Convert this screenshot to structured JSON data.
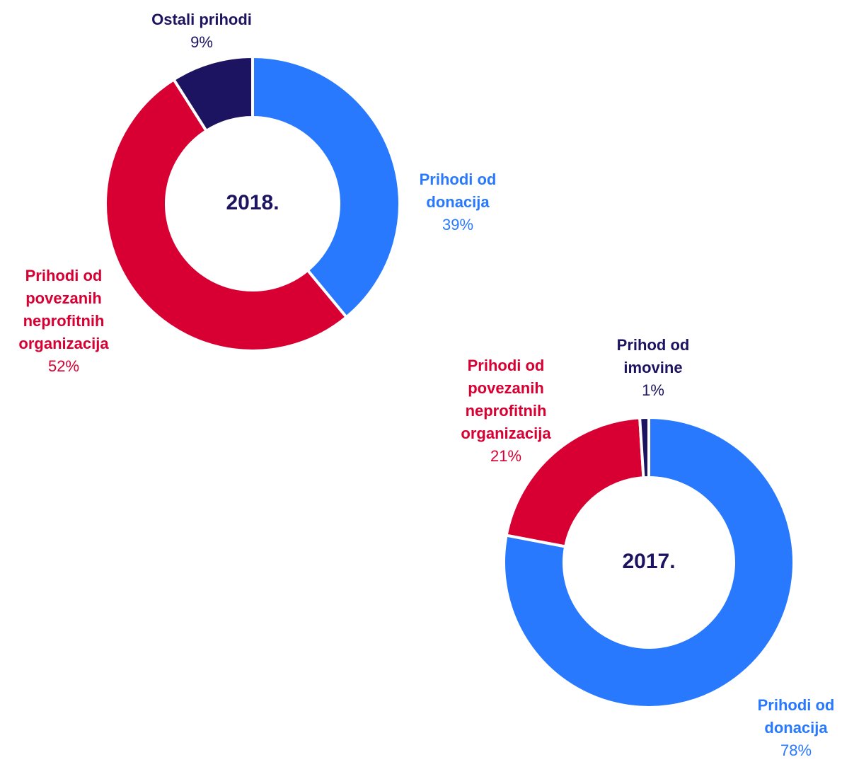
{
  "chart_data": [
    {
      "type": "pie",
      "donut": true,
      "title": "2018.",
      "categories": [
        "Prihodi od donacija",
        "Prihodi od povezanih neprofitnih organizacija",
        "Ostali prihodi"
      ],
      "values": [
        39,
        52,
        9
      ],
      "value_labels": [
        "39%",
        "52%",
        "9%"
      ],
      "colors": [
        "#2979ff",
        "#d80032",
        "#1c1461"
      ]
    },
    {
      "type": "pie",
      "donut": true,
      "title": "2017.",
      "categories": [
        "Prihodi od donacija",
        "Prihodi od povezanih neprofitnih organizacija",
        "Prihod od imovine"
      ],
      "values": [
        78,
        21,
        1
      ],
      "value_labels": [
        "78%",
        "21%",
        "1%"
      ],
      "colors": [
        "#2979ff",
        "#d80032",
        "#1c1461"
      ]
    }
  ]
}
